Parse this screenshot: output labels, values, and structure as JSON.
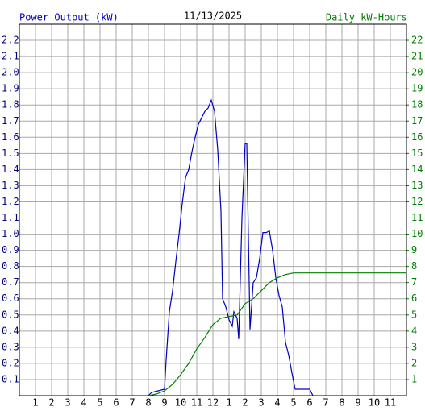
{
  "chart_data": {
    "type": "line",
    "title": "11/13/2025",
    "y_label": "Power Output (kW)",
    "y2_label": "Daily kW-Hours",
    "xlim": [
      0,
      24
    ],
    "xticks": [
      1,
      2,
      3,
      4,
      5,
      6,
      7,
      8,
      9,
      10,
      11,
      12,
      {
        "value": 13,
        "label": "1"
      },
      {
        "value": 14,
        "label": "2"
      },
      {
        "value": 15,
        "label": "3"
      },
      {
        "value": 16,
        "label": "4"
      },
      {
        "value": 17,
        "label": "5"
      },
      {
        "value": 18,
        "label": "6"
      },
      {
        "value": 19,
        "label": "7"
      },
      {
        "value": 20,
        "label": "8"
      },
      {
        "value": 21,
        "label": "9"
      },
      {
        "value": 22,
        "label": "10"
      },
      {
        "value": 23,
        "label": "11"
      }
    ],
    "ylim": [
      0,
      2.3
    ],
    "yticks": [
      0.1,
      0.2,
      0.3,
      0.4,
      0.5,
      0.6,
      0.7,
      0.8,
      0.9,
      {
        "value": 1,
        "label": "1.0"
      },
      1.1,
      1.2,
      1.3,
      1.4,
      1.5,
      1.6,
      1.7,
      1.8,
      1.9,
      {
        "value": 2,
        "label": "2.0"
      },
      2.1,
      2.2
    ],
    "y2lim": [
      0,
      23
    ],
    "y2ticks": [
      1,
      2,
      3,
      4,
      5,
      6,
      7,
      8,
      9,
      10,
      11,
      12,
      13,
      14,
      15,
      16,
      17,
      18,
      19,
      20,
      21,
      22
    ],
    "grid": true,
    "series": [
      {
        "name": "Power Output (kW)",
        "color": "#0000c0",
        "x": [
          8.0,
          8.2,
          8.6,
          9.0,
          9.1,
          9.3,
          9.5,
          9.7,
          9.9,
          10.1,
          10.3,
          10.5,
          10.7,
          10.9,
          11.1,
          11.3,
          11.5,
          11.7,
          11.9,
          12.1,
          12.3,
          12.5,
          12.6,
          12.8,
          13.0,
          13.2,
          13.3,
          13.5,
          13.6,
          13.8,
          14.0,
          14.1,
          14.3,
          14.5,
          14.7,
          14.9,
          15.1,
          15.3,
          15.5,
          15.7,
          15.9,
          16.1,
          16.3,
          16.5,
          16.7,
          16.9,
          17.1,
          18.0,
          18.2
        ],
        "values": [
          0,
          0.02,
          0.03,
          0.04,
          0.22,
          0.52,
          0.65,
          0.83,
          1.0,
          1.19,
          1.35,
          1.4,
          1.51,
          1.6,
          1.68,
          1.72,
          1.76,
          1.78,
          1.83,
          1.76,
          1.52,
          1.14,
          0.6,
          0.55,
          0.47,
          0.43,
          0.52,
          0.48,
          0.35,
          1.1,
          1.56,
          1.56,
          0.41,
          0.7,
          0.73,
          0.85,
          1.01,
          1.01,
          1.02,
          0.9,
          0.73,
          0.62,
          0.55,
          0.33,
          0.25,
          0.14,
          0.04,
          0.04,
          0
        ]
      },
      {
        "name": "Daily kW-Hours",
        "color": "#008000",
        "axis": "y2",
        "x": [
          8,
          8.5,
          9,
          9.5,
          10,
          10.5,
          11,
          11.5,
          12,
          12.5,
          13,
          13.5,
          14,
          14.5,
          15,
          15.5,
          16,
          16.5,
          17,
          24
        ],
        "values": [
          0,
          0.1,
          0.3,
          0.7,
          1.3,
          2.0,
          2.9,
          3.6,
          4.4,
          4.8,
          4.9,
          5.0,
          5.7,
          6.0,
          6.5,
          7.0,
          7.3,
          7.5,
          7.6,
          7.6
        ]
      }
    ]
  }
}
